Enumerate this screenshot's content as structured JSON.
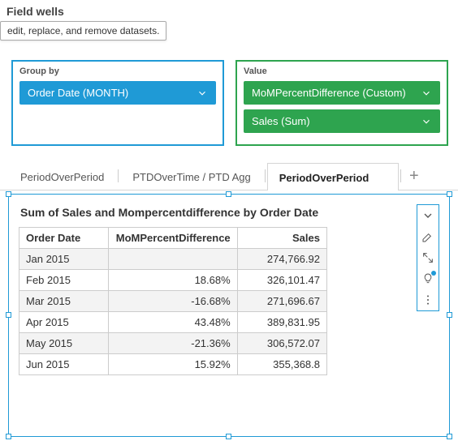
{
  "panel": {
    "title": "Field wells"
  },
  "tooltip": {
    "text": "edit, replace, and remove datasets."
  },
  "wells": {
    "group": {
      "label": "Group by",
      "fields": [
        {
          "label": "Order Date (MONTH)"
        }
      ],
      "border_color": "#1f9ad6",
      "pill_color": "#1f9ad6"
    },
    "value": {
      "label": "Value",
      "fields": [
        {
          "label": "MoMPercentDifference (Custom)"
        },
        {
          "label": "Sales (Sum)"
        }
      ],
      "border_color": "#2ea44f",
      "pill_color": "#2ea44f"
    }
  },
  "tabs": {
    "items": [
      {
        "label": "PeriodOverPeriod",
        "active": false
      },
      {
        "label": "PTDOverTime / PTD Agg",
        "active": false
      },
      {
        "label": "PeriodOverPeriod",
        "active": true
      }
    ]
  },
  "visual": {
    "title": "Sum of Sales and Mompercentdifference by Order Date",
    "columns": [
      "Order Date",
      "MoMPercentDifference",
      "Sales"
    ],
    "rows": [
      [
        "Jan 2015",
        "",
        "274,766.92"
      ],
      [
        "Feb 2015",
        "18.68%",
        "326,101.47"
      ],
      [
        "Mar 2015",
        "-16.68%",
        "271,696.67"
      ],
      [
        "Apr 2015",
        "43.48%",
        "389,831.95"
      ],
      [
        "May 2015",
        "-21.36%",
        "306,572.07"
      ],
      [
        "Jun 2015",
        "15.92%",
        "355,368.8"
      ]
    ],
    "col_widths": [
      "110px",
      "150px",
      "110px"
    ]
  },
  "colors": {
    "selection_border": "#1f9ad6",
    "grid_border": "#cccccc",
    "row_alt_bg": "#f3f3f3"
  }
}
